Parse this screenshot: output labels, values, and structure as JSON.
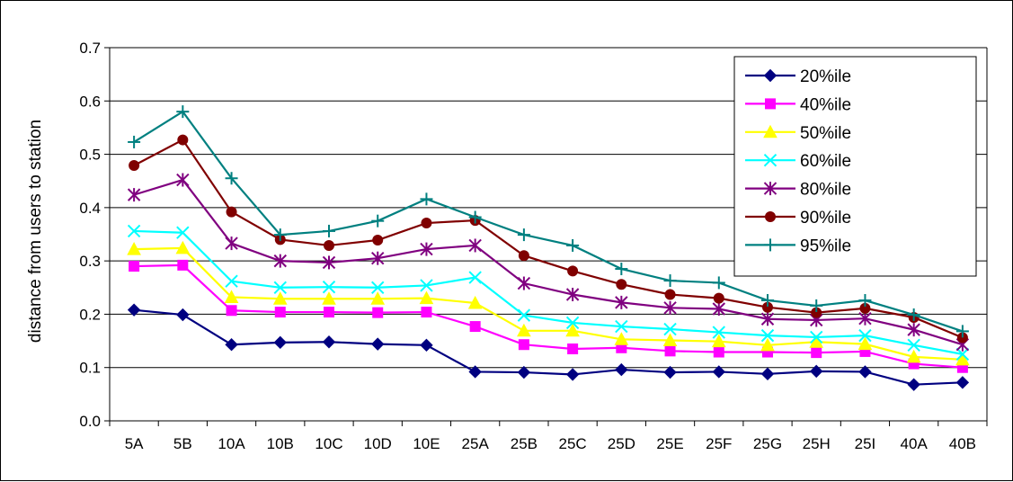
{
  "chart_data": {
    "type": "line",
    "title": "",
    "xlabel": "",
    "ylabel": "distance from users to station",
    "ylim": [
      0,
      0.7
    ],
    "yticks": [
      "0.0",
      "0.1",
      "0.2",
      "0.3",
      "0.4",
      "0.5",
      "0.6",
      "0.7"
    ],
    "grid": "horizontal",
    "legend_position": "top-right",
    "categories": [
      "5A",
      "5B",
      "10A",
      "10B",
      "10C",
      "10D",
      "10E",
      "25A",
      "25B",
      "25C",
      "25D",
      "25E",
      "25F",
      "25G",
      "25H",
      "25I",
      "40A",
      "40B"
    ],
    "series": [
      {
        "name": "20%ile",
        "color": "#000080",
        "marker": "diamond",
        "values": [
          0.208,
          0.199,
          0.143,
          0.147,
          0.148,
          0.144,
          0.142,
          0.092,
          0.091,
          0.087,
          0.096,
          0.091,
          0.092,
          0.088,
          0.093,
          0.092,
          0.068,
          0.072
        ]
      },
      {
        "name": "40%ile",
        "color": "#ff00ff",
        "marker": "square",
        "values": [
          0.29,
          0.292,
          0.207,
          0.204,
          0.204,
          0.203,
          0.204,
          0.177,
          0.143,
          0.135,
          0.137,
          0.131,
          0.129,
          0.129,
          0.128,
          0.13,
          0.107,
          0.1
        ]
      },
      {
        "name": "50%ile",
        "color": "#ffff00",
        "marker": "triangle",
        "values": [
          0.322,
          0.324,
          0.232,
          0.229,
          0.229,
          0.229,
          0.23,
          0.221,
          0.169,
          0.169,
          0.153,
          0.151,
          0.149,
          0.142,
          0.148,
          0.144,
          0.12,
          0.115
        ]
      },
      {
        "name": "60%ile",
        "color": "#00ffff",
        "marker": "x",
        "values": [
          0.356,
          0.353,
          0.262,
          0.25,
          0.251,
          0.25,
          0.254,
          0.269,
          0.198,
          0.184,
          0.177,
          0.172,
          0.166,
          0.16,
          0.157,
          0.16,
          0.142,
          0.125
        ]
      },
      {
        "name": "80%ile",
        "color": "#800080",
        "marker": "star",
        "values": [
          0.424,
          0.452,
          0.333,
          0.3,
          0.297,
          0.305,
          0.322,
          0.329,
          0.258,
          0.237,
          0.222,
          0.212,
          0.21,
          0.191,
          0.189,
          0.192,
          0.171,
          0.143
        ]
      },
      {
        "name": "90%ile",
        "color": "#800000",
        "marker": "circle",
        "values": [
          0.479,
          0.527,
          0.392,
          0.34,
          0.329,
          0.339,
          0.371,
          0.376,
          0.31,
          0.281,
          0.256,
          0.237,
          0.23,
          0.213,
          0.203,
          0.211,
          0.194,
          0.156
        ]
      },
      {
        "name": "95%ile",
        "color": "#008080",
        "marker": "plus",
        "values": [
          0.523,
          0.58,
          0.455,
          0.349,
          0.356,
          0.375,
          0.416,
          0.382,
          0.349,
          0.329,
          0.285,
          0.263,
          0.259,
          0.226,
          0.216,
          0.226,
          0.199,
          0.168
        ]
      }
    ]
  }
}
